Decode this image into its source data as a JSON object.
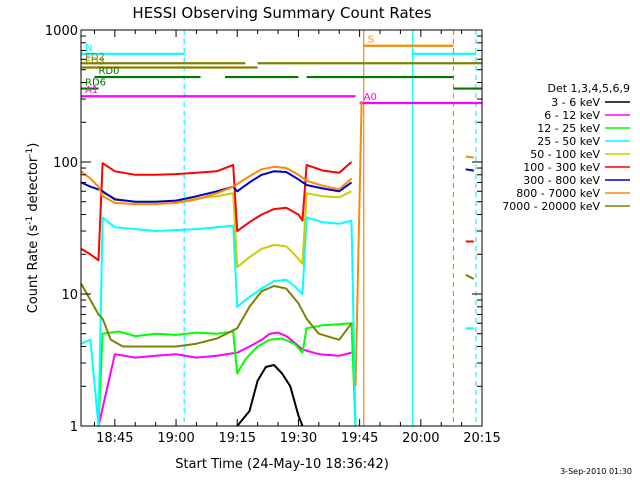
{
  "chart_data": {
    "type": "line",
    "title": "HESSI Observing Summary Count Rates",
    "xlabel": "Start Time (24-May-10 18:36:42)",
    "ylabel_main": "Count Rate (s",
    "ylabel_sup": "-1",
    "ylabel_mid": " detector",
    "ylabel_end": ")",
    "x_range_minutes": [
      1116.7,
      1215
    ],
    "ylim": [
      1,
      1000
    ],
    "y_scale": "log",
    "x_ticks": [
      {
        "value": 1125,
        "label": "18:45"
      },
      {
        "value": 1140,
        "label": "19:00"
      },
      {
        "value": 1155,
        "label": "19:15"
      },
      {
        "value": 1170,
        "label": "19:30"
      },
      {
        "value": 1185,
        "label": "19:45"
      },
      {
        "value": 1200,
        "label": "20:00"
      },
      {
        "value": 1215,
        "label": "20:15"
      }
    ],
    "y_ticks": [
      {
        "value": 1,
        "label": "1"
      },
      {
        "value": 10,
        "label": "10"
      },
      {
        "value": 100,
        "label": "100"
      },
      {
        "value": 1000,
        "label": "1000"
      }
    ],
    "legend_title": "Det 1,3,4,5,6,9",
    "legend_position": "right",
    "series": [
      {
        "name": "3 - 6 keV",
        "color": "#000000",
        "points": [
          [
            1155,
            1.0
          ],
          [
            1158,
            1.3
          ],
          [
            1160,
            2.2
          ],
          [
            1162,
            2.8
          ],
          [
            1164,
            2.9
          ],
          [
            1166,
            2.5
          ],
          [
            1168,
            2.0
          ],
          [
            1170,
            1.2
          ],
          [
            1171,
            1.0
          ]
        ]
      },
      {
        "name": "6 - 12 keV",
        "color": "#ff00ff",
        "points": [
          [
            1121,
            1.0
          ],
          [
            1125,
            3.5
          ],
          [
            1130,
            3.3
          ],
          [
            1135,
            3.4
          ],
          [
            1140,
            3.5
          ],
          [
            1145,
            3.3
          ],
          [
            1150,
            3.4
          ],
          [
            1155,
            3.6
          ],
          [
            1158,
            4.0
          ],
          [
            1161,
            4.5
          ],
          [
            1163,
            5.0
          ],
          [
            1165,
            5.1
          ],
          [
            1167,
            4.8
          ],
          [
            1169,
            4.3
          ],
          [
            1171,
            3.8
          ],
          [
            1175,
            3.5
          ],
          [
            1180,
            3.4
          ],
          [
            1183,
            3.6
          ]
        ]
      },
      {
        "name": "12 - 25 keV",
        "color": "#00ff00",
        "points": [
          [
            1121,
            1.0
          ],
          [
            1122,
            5.0
          ],
          [
            1126,
            5.2
          ],
          [
            1130,
            4.8
          ],
          [
            1135,
            5.0
          ],
          [
            1140,
            4.9
          ],
          [
            1145,
            5.1
          ],
          [
            1150,
            5.0
          ],
          [
            1154,
            5.2
          ],
          [
            1155,
            2.5
          ],
          [
            1157,
            3.2
          ],
          [
            1160,
            4.0
          ],
          [
            1163,
            4.5
          ],
          [
            1166,
            4.6
          ],
          [
            1169,
            4.2
          ],
          [
            1171,
            3.6
          ],
          [
            1172,
            5.5
          ],
          [
            1176,
            5.8
          ],
          [
            1180,
            5.9
          ],
          [
            1183,
            6.0
          ],
          [
            1184,
            1.0
          ]
        ]
      },
      {
        "name": "25 - 50 keV",
        "color": "#00ffff",
        "points": [
          [
            1116.7,
            4.2
          ],
          [
            1119,
            4.5
          ],
          [
            1121,
            1.0
          ],
          [
            1122,
            38
          ],
          [
            1125,
            32
          ],
          [
            1130,
            31
          ],
          [
            1135,
            30
          ],
          [
            1140,
            30.5
          ],
          [
            1145,
            31
          ],
          [
            1150,
            32
          ],
          [
            1154,
            33
          ],
          [
            1155,
            8.0
          ],
          [
            1158,
            9.5
          ],
          [
            1161,
            11
          ],
          [
            1164,
            12.5
          ],
          [
            1167,
            12.8
          ],
          [
            1169,
            11.5
          ],
          [
            1171,
            10
          ],
          [
            1172,
            38
          ],
          [
            1176,
            35
          ],
          [
            1180,
            34
          ],
          [
            1183,
            36
          ],
          [
            1184,
            1.0
          ]
        ]
      },
      {
        "name": "50 - 100 keV",
        "color": "#cccc00",
        "points": [
          [
            1122,
            58
          ],
          [
            1126,
            52
          ],
          [
            1130,
            50
          ],
          [
            1135,
            50
          ],
          [
            1140,
            51
          ],
          [
            1145,
            53
          ],
          [
            1150,
            55
          ],
          [
            1154,
            58
          ],
          [
            1155,
            16
          ],
          [
            1158,
            19
          ],
          [
            1161,
            22
          ],
          [
            1164,
            23.5
          ],
          [
            1167,
            23
          ],
          [
            1169,
            20
          ],
          [
            1171,
            17
          ],
          [
            1172,
            58
          ],
          [
            1176,
            55
          ],
          [
            1180,
            54
          ],
          [
            1183,
            60
          ]
        ]
      },
      {
        "name": "100 - 300 keV",
        "color": "#ff0000",
        "points": [
          [
            1116.7,
            22
          ],
          [
            1119,
            20
          ],
          [
            1121,
            18
          ],
          [
            1122,
            98
          ],
          [
            1125,
            85
          ],
          [
            1130,
            80
          ],
          [
            1135,
            80
          ],
          [
            1140,
            81
          ],
          [
            1145,
            83
          ],
          [
            1150,
            85
          ],
          [
            1154,
            95
          ],
          [
            1155,
            30
          ],
          [
            1158,
            35
          ],
          [
            1161,
            40
          ],
          [
            1164,
            44
          ],
          [
            1167,
            45
          ],
          [
            1170,
            40
          ],
          [
            1171,
            36
          ],
          [
            1172,
            95
          ],
          [
            1176,
            86
          ],
          [
            1180,
            83
          ],
          [
            1183,
            100
          ]
        ]
      },
      {
        "name": "300 - 800 keV",
        "color": "#0000cc",
        "points": [
          [
            1116.7,
            70
          ],
          [
            1119,
            65
          ],
          [
            1121,
            62
          ],
          [
            1122,
            60
          ],
          [
            1125,
            52
          ],
          [
            1130,
            50
          ],
          [
            1135,
            50
          ],
          [
            1140,
            51
          ],
          [
            1145,
            55
          ],
          [
            1150,
            60
          ],
          [
            1154,
            65
          ],
          [
            1155,
            60
          ],
          [
            1158,
            70
          ],
          [
            1161,
            80
          ],
          [
            1164,
            85
          ],
          [
            1167,
            84
          ],
          [
            1170,
            74
          ],
          [
            1172,
            67
          ],
          [
            1176,
            63
          ],
          [
            1180,
            60
          ],
          [
            1183,
            70
          ]
        ]
      },
      {
        "name": "800 - 7000 keV",
        "color": "#ff8800",
        "points": [
          [
            1116.7,
            85
          ],
          [
            1119,
            75
          ],
          [
            1121,
            65
          ],
          [
            1122,
            55
          ],
          [
            1125,
            49
          ],
          [
            1130,
            48
          ],
          [
            1135,
            48
          ],
          [
            1140,
            49
          ],
          [
            1145,
            52
          ],
          [
            1150,
            58
          ],
          [
            1154,
            65
          ],
          [
            1155,
            68
          ],
          [
            1158,
            78
          ],
          [
            1161,
            88
          ],
          [
            1164,
            92
          ],
          [
            1167,
            90
          ],
          [
            1170,
            80
          ],
          [
            1172,
            72
          ],
          [
            1176,
            66
          ],
          [
            1180,
            62
          ],
          [
            1183,
            75
          ]
        ]
      },
      {
        "name": "7000 - 20000 keV",
        "color": "#808000",
        "points": [
          [
            1116.7,
            12
          ],
          [
            1119,
            9
          ],
          [
            1121,
            7
          ],
          [
            1122,
            6.5
          ],
          [
            1124,
            4.5
          ],
          [
            1127,
            4.0
          ],
          [
            1130,
            4.0
          ],
          [
            1135,
            4.0
          ],
          [
            1140,
            4.0
          ],
          [
            1145,
            4.2
          ],
          [
            1150,
            4.6
          ],
          [
            1155,
            5.5
          ],
          [
            1158,
            8
          ],
          [
            1161,
            10.5
          ],
          [
            1164,
            11.5
          ],
          [
            1167,
            11
          ],
          [
            1170,
            8.5
          ],
          [
            1172,
            6.5
          ],
          [
            1175,
            5.0
          ],
          [
            1180,
            4.5
          ],
          [
            1183,
            6.0
          ]
        ]
      }
    ],
    "edge_fragments": [
      {
        "series": "800 - 7000 keV",
        "points": [
          [
            1211,
            110
          ],
          [
            1213,
            108
          ]
        ]
      },
      {
        "series": "300 - 800 keV",
        "points": [
          [
            1211,
            88
          ],
          [
            1213,
            86
          ]
        ]
      },
      {
        "series": "100 - 300 keV",
        "points": [
          [
            1211,
            25
          ],
          [
            1213,
            25
          ]
        ]
      },
      {
        "series": "7000 - 20000 keV",
        "points": [
          [
            1211,
            14
          ],
          [
            1213,
            13
          ]
        ]
      },
      {
        "series": "25 - 50 keV",
        "points": [
          [
            1211,
            5.5
          ],
          [
            1213,
            5.5
          ]
        ]
      }
    ],
    "vertical_lines": [
      {
        "x": 1142,
        "color": "#00ffff",
        "style": "dashed"
      },
      {
        "x": 1186,
        "color": "#ff8800",
        "style": "solid"
      },
      {
        "x": 1198,
        "color": "#00ffff",
        "style": "solid"
      },
      {
        "x": 1208,
        "color": "#ff8800",
        "style": "dashed"
      },
      {
        "x": 1213.5,
        "color": "#00ffff",
        "style": "dashed"
      }
    ],
    "steep_rise": {
      "x_start": 1184,
      "x_end": 1185.5,
      "y_start": 2,
      "y_end": 290,
      "color": "#ff8800"
    },
    "flags": [
      {
        "label": "N",
        "color": "#00ffff",
        "segments": [
          [
            1116.7,
            1142
          ],
          [
            1198,
            1213.5
          ]
        ],
        "y": 660
      },
      {
        "label": "S",
        "color": "#ff8800",
        "segments": [
          [
            1186,
            1208
          ]
        ],
        "y": 760
      },
      {
        "label": "FD2",
        "color": "#808000",
        "segments": [
          [
            1116.7,
            1157
          ],
          [
            1160,
            1215
          ]
        ],
        "y": 560
      },
      {
        "label": "FD3",
        "color": "#808000",
        "segments": [
          [
            1116.7,
            1160
          ]
        ],
        "y": 520
      },
      {
        "label": "RD0",
        "color": "#007700",
        "segments": [
          [
            1120,
            1146
          ],
          [
            1152,
            1170
          ],
          [
            1172,
            1208
          ]
        ],
        "y": 440
      },
      {
        "label": "RD6",
        "color": "#007700",
        "segments": [
          [
            1116.7,
            1121
          ],
          [
            1208,
            1215
          ]
        ],
        "y": 360
      },
      {
        "label": "A1",
        "color": "#ff00ff",
        "segments": [
          [
            1116.7,
            1184
          ]
        ],
        "y": 315
      },
      {
        "label": "A0",
        "color": "#ff00ff",
        "segments": [
          [
            1185,
            1215
          ]
        ],
        "y": 280
      }
    ],
    "stamp": "3-Sep-2010 01:30"
  }
}
